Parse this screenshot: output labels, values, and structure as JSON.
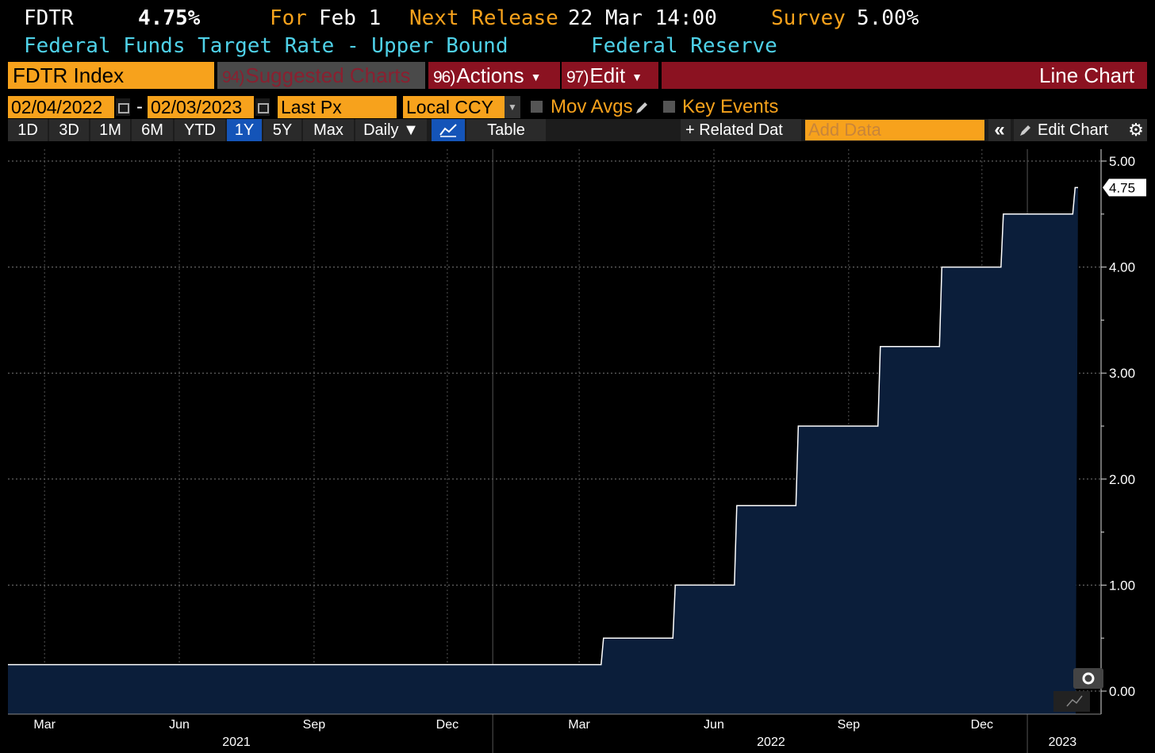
{
  "header": {
    "ticker": "FDTR",
    "value": "4.75%",
    "for_label": "For",
    "for_date": "Feb 1",
    "next_release_label": "Next Release",
    "next_release_value": "22 Mar 14:00",
    "survey_label": "Survey",
    "survey_value": "5.00%",
    "description": "Federal Funds Target Rate - Upper Bound",
    "source": "Federal Reserve"
  },
  "toolbar": {
    "security": "FDTR Index",
    "suggested_num": "94)",
    "suggested_label": "Suggested Charts",
    "actions_num": "96)",
    "actions_label": "Actions",
    "edit_num": "97)",
    "edit_label": "Edit",
    "chart_type": "Line Chart"
  },
  "date_range": {
    "start": "02/04/2022",
    "separator": "-",
    "end": "02/03/2023",
    "field": "Last Px",
    "currency": "Local CCY",
    "mov_avgs": "Mov Avgs",
    "key_events": "Key Events"
  },
  "periods": [
    "1D",
    "3D",
    "1M",
    "6M",
    "YTD",
    "1Y",
    "5Y",
    "Max"
  ],
  "selected_period": "1Y",
  "frequency": "Daily ▼",
  "table_label": "Table",
  "related_data": "+ Related Dat",
  "add_data_placeholder": "Add Data",
  "collapse_label": "«",
  "edit_chart": "Edit Chart",
  "colors": {
    "accent_orange": "#f7a21c",
    "toolbar_red": "#8b1221",
    "area_fill": "#0b1e3a",
    "line": "#ffffff",
    "selected_blue": "#1454b8"
  },
  "chart_data": {
    "type": "area",
    "title": "",
    "xlabel": "",
    "ylabel": "",
    "ylim": [
      -0.2,
      5.2
    ],
    "yticks": [
      "5.00",
      "4.00",
      "3.00",
      "2.00",
      "1.00",
      "0.00"
    ],
    "last_value_label": "4.75",
    "x_tick_labels": [
      "Mar",
      "Jun",
      "Sep",
      "Dec",
      "Mar",
      "Jun",
      "Sep",
      "Dec"
    ],
    "year_labels": [
      "2021",
      "2022",
      "2023"
    ],
    "series": [
      {
        "name": "FDTR",
        "points": [
          {
            "x": "2021-02-04",
            "y": 0.25
          },
          {
            "x": "2022-03-16",
            "y": 0.5
          },
          {
            "x": "2022-05-04",
            "y": 1.0
          },
          {
            "x": "2022-06-15",
            "y": 1.75
          },
          {
            "x": "2022-07-27",
            "y": 2.5
          },
          {
            "x": "2022-09-21",
            "y": 3.25
          },
          {
            "x": "2022-11-02",
            "y": 4.0
          },
          {
            "x": "2022-12-14",
            "y": 4.5
          },
          {
            "x": "2023-02-01",
            "y": 4.75
          },
          {
            "x": "2023-02-03",
            "y": 4.75
          }
        ]
      }
    ],
    "grid": true,
    "legend": "none"
  }
}
